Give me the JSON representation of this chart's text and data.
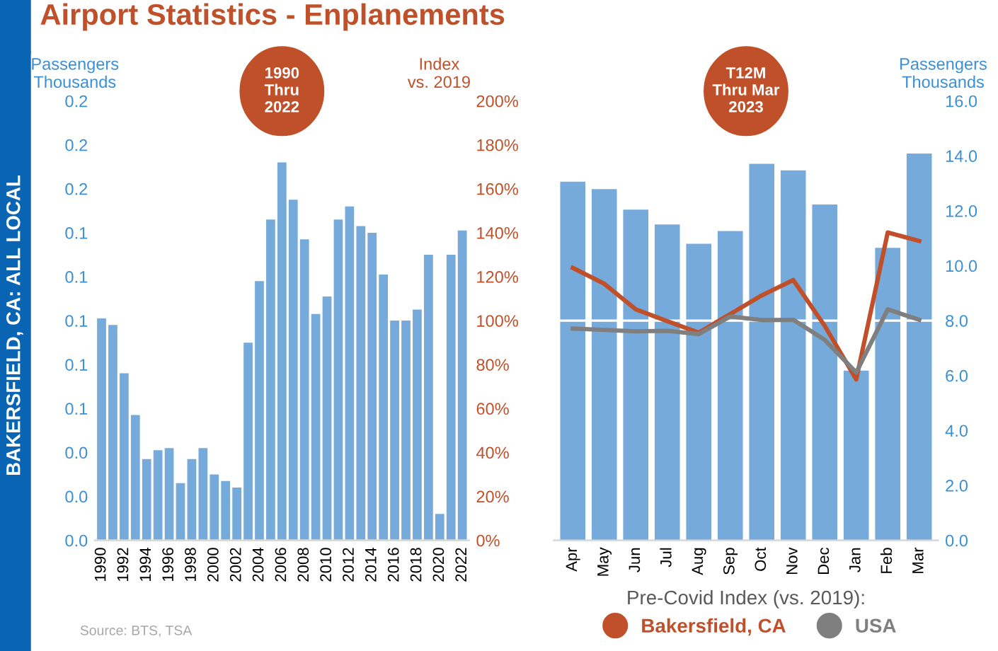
{
  "chart_data": [
    {
      "type": "bar",
      "title": "Airport Statistics - Enplanements",
      "ylabel": "Passengers\nThousands",
      "y2label": "Index\nvs. 2019",
      "annotations": [
        "1990\nThru\n2022",
        "BAKERSFIELD, CA: ALL LOCAL",
        "Source: BTS, TSA"
      ],
      "categories": [
        "1990",
        null,
        "1992",
        null,
        "1994",
        null,
        "1996",
        null,
        "1998",
        null,
        "2000",
        null,
        "2002",
        null,
        "2004",
        null,
        "2006",
        null,
        "2008",
        null,
        "2010",
        null,
        "2012",
        null,
        "2014",
        null,
        "2016",
        null,
        "2018",
        null,
        "2020",
        null,
        "2022"
      ],
      "series": [
        {
          "color": "#75aadb",
          "values": [
            0.101,
            0.098,
            0.076,
            0.057,
            0.037,
            0.041,
            0.042,
            0.026,
            0.037,
            0.042,
            0.03,
            0.027,
            0.024,
            0.09,
            0.118,
            0.146,
            0.172,
            0.155,
            0.137,
            0.103,
            0.111,
            0.146,
            0.152,
            0.143,
            0.14,
            0.121,
            0.1,
            0.1,
            0.105,
            0.13,
            0.012,
            0.13,
            0.141
          ]
        }
      ],
      "ylim": [
        0,
        0.2
      ],
      "yticks": [
        {
          "value": 0,
          "label": "0.0"
        },
        {
          "value": 0.02,
          "label": "0.0"
        },
        {
          "value": 0.04,
          "label": "0.0"
        },
        {
          "value": 0.06,
          "label": "0.1"
        },
        {
          "value": 0.08,
          "label": "0.1"
        },
        {
          "value": 0.1,
          "label": "0.1"
        },
        {
          "value": 0.12,
          "label": "0.1"
        },
        {
          "value": 0.14,
          "label": "0.1"
        },
        {
          "value": 0.16,
          "label": "0.2"
        },
        {
          "value": 0.18,
          "label": "0.2"
        },
        {
          "value": 0.2,
          "label": "0.2"
        }
      ],
      "y2lim": [
        0,
        200
      ],
      "y2ticks": [
        {
          "value": 0,
          "label": "0%"
        },
        {
          "value": 20,
          "label": "20%"
        },
        {
          "value": 40,
          "label": "40%"
        },
        {
          "value": 60,
          "label": "60%"
        },
        {
          "value": 80,
          "label": "80%"
        },
        {
          "value": 100,
          "label": "100%"
        },
        {
          "value": 120,
          "label": "120%"
        },
        {
          "value": 140,
          "label": "140%"
        },
        {
          "value": 160,
          "label": "160%"
        },
        {
          "value": 180,
          "label": "180%"
        },
        {
          "value": 200,
          "label": "200%"
        }
      ]
    },
    {
      "type": "bar",
      "y2label": "Passengers\nThousands",
      "annotations": [
        "T12M\nThru Mar\n2023"
      ],
      "categories": [
        "Apr",
        "May",
        "Jun",
        "Jul",
        "Aug",
        "Sep",
        "Oct",
        "Nov",
        "Dec",
        "Jan",
        "Feb",
        "Mar"
      ],
      "series": [
        {
          "type": "bar",
          "axis": "y2",
          "color": "#75aadb",
          "values": [
            13.06,
            12.79,
            12.04,
            11.5,
            10.8,
            11.26,
            13.71,
            13.47,
            12.23,
            6.18,
            10.65,
            14.08
          ]
        },
        {
          "type": "line",
          "axis": "y2",
          "name": "Bakersfield, CA",
          "color": "#c0502a",
          "values": [
            9.92,
            9.34,
            8.41,
            7.98,
            7.56,
            8.24,
            8.92,
            9.48,
            7.81,
            5.86,
            11.21,
            10.9
          ]
        },
        {
          "type": "line",
          "axis": "y2",
          "name": "USA",
          "color": "#7f7f7f",
          "values": [
            7.71,
            7.66,
            7.61,
            7.63,
            7.51,
            8.15,
            8.02,
            8.03,
            7.3,
            6.11,
            8.41,
            8.03
          ]
        }
      ],
      "ref_lines": [
        {
          "axis": "y2",
          "value": 8,
          "color": "#ffffff"
        }
      ],
      "y2lim": [
        0,
        16
      ],
      "y2ticks": [
        {
          "value": 0,
          "label": "0.0"
        },
        {
          "value": 2,
          "label": "2.0"
        },
        {
          "value": 4,
          "label": "4.0"
        },
        {
          "value": 6,
          "label": "6.0"
        },
        {
          "value": 8,
          "label": "8.0"
        },
        {
          "value": 10,
          "label": "10.0"
        },
        {
          "value": 12,
          "label": "12.0"
        },
        {
          "value": 14,
          "label": "14.0"
        },
        {
          "value": 16,
          "label": "16.0"
        }
      ],
      "legend": "bottom",
      "legend_title": "Pre-Covid Index (vs. 2019):"
    }
  ]
}
